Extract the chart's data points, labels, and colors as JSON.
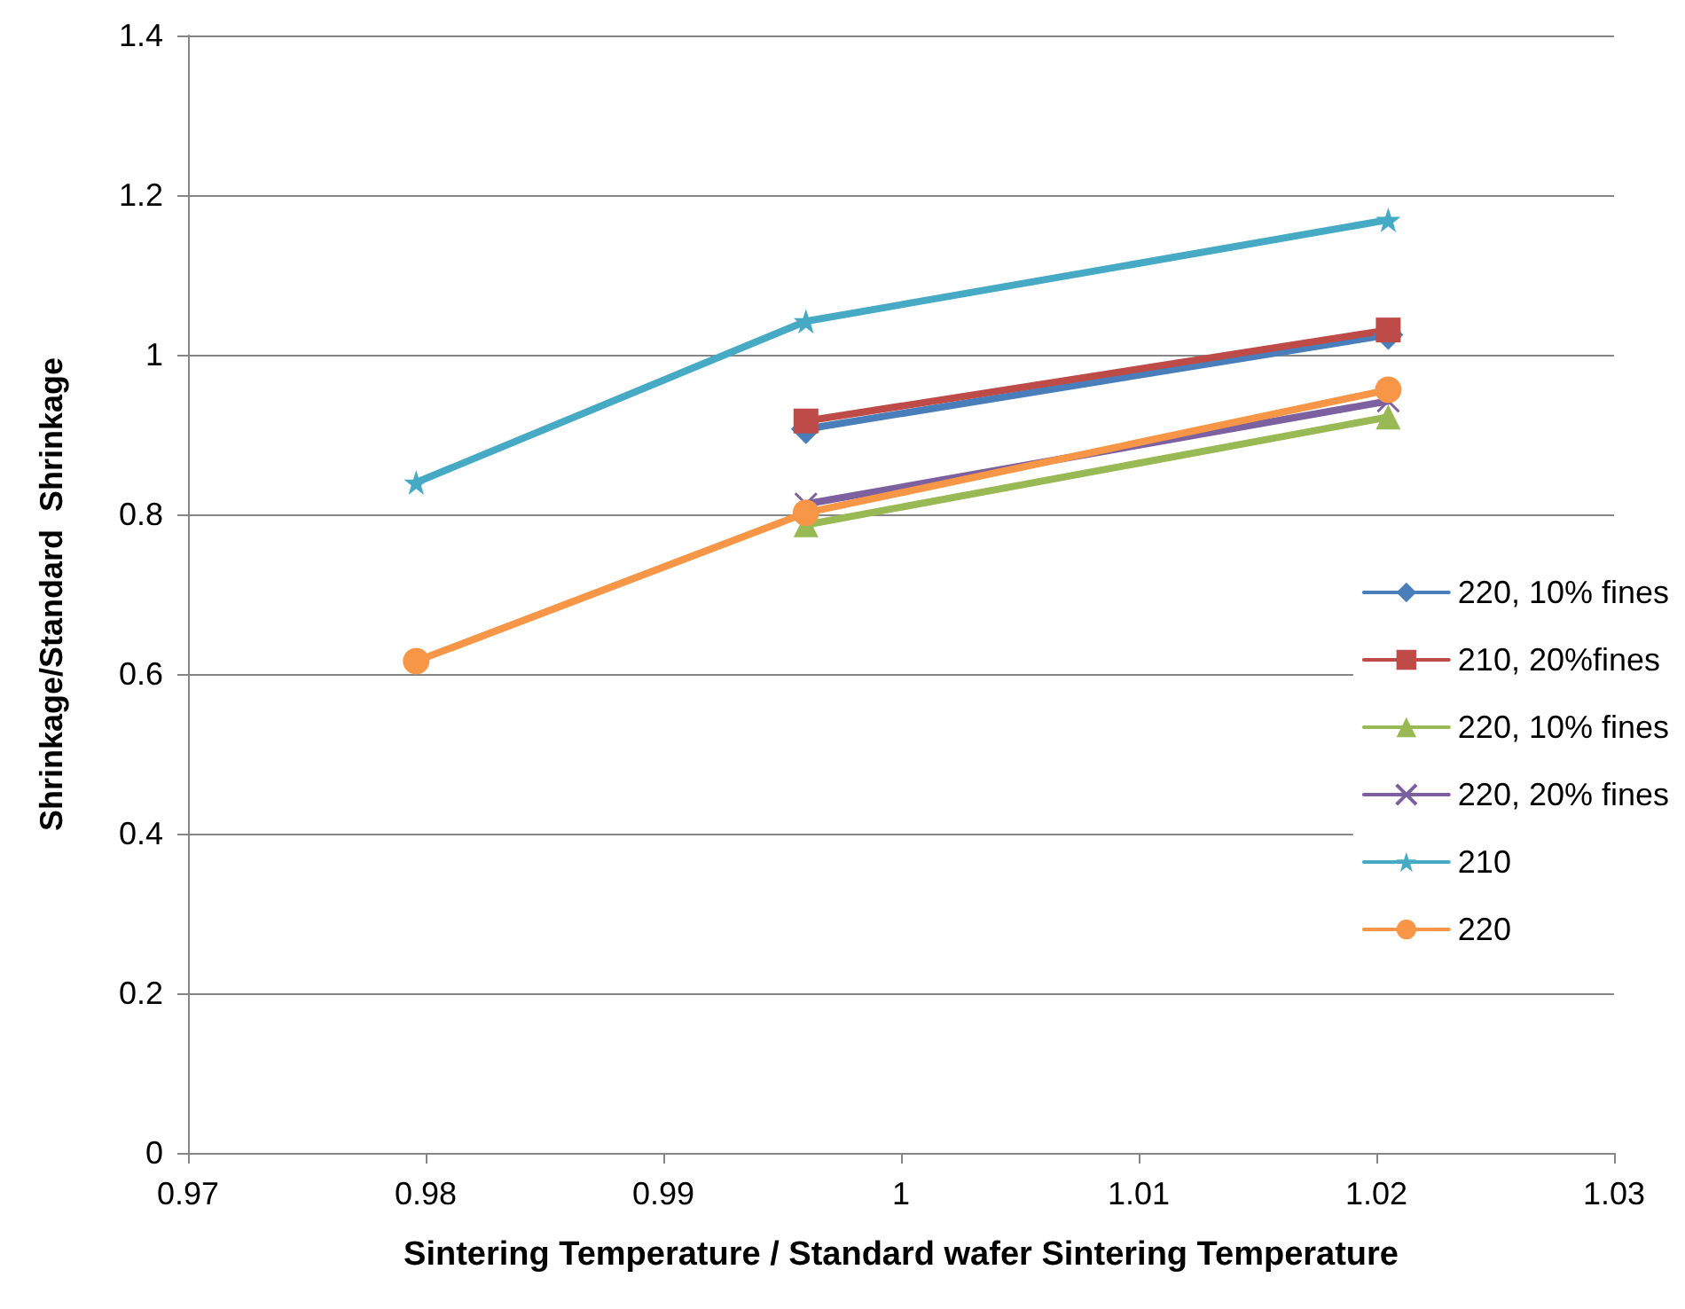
{
  "chart_data": {
    "type": "line",
    "xlabel": "Sintering Temperature / Standard wafer Sintering Temperature",
    "ylabel": "Shrinkage/Standard  Shrinkage",
    "xlim": [
      0.97,
      1.03
    ],
    "xticks": [
      0.97,
      0.98,
      0.99,
      1,
      1.01,
      1.02,
      1.03
    ],
    "ylim": [
      0,
      1.4
    ],
    "yticks": [
      0,
      0.2,
      0.4,
      0.6,
      0.8,
      1,
      1.2,
      1.4
    ],
    "grid": "y",
    "legend": "right",
    "line_style": "solid",
    "series": [
      {
        "name": "220, 10% fines",
        "color": "#4a7ebb",
        "marker": "diamond",
        "x": [
          0.996,
          1.0205
        ],
        "values": [
          0.907,
          1.025
        ]
      },
      {
        "name": "210, 20%fines",
        "color": "#be4b48",
        "marker": "square",
        "x": [
          0.996,
          1.0205
        ],
        "values": [
          0.917,
          1.031
        ]
      },
      {
        "name": "220, 10% fines",
        "color": "#98b954",
        "marker": "triangle",
        "x": [
          0.996,
          1.0205
        ],
        "values": [
          0.787,
          0.922
        ]
      },
      {
        "name": "220, 20% fines",
        "color": "#7d60a0",
        "marker": "cross",
        "x": [
          0.996,
          1.0205
        ],
        "values": [
          0.813,
          0.942
        ]
      },
      {
        "name": "210",
        "color": "#46aac5",
        "marker": "star",
        "x": [
          0.9796,
          0.996,
          1.0205
        ],
        "values": [
          0.84,
          1.042,
          1.169
        ]
      },
      {
        "name": "220",
        "color": "#f79646",
        "marker": "circle",
        "x": [
          0.9796,
          0.996,
          1.0205
        ],
        "values": [
          0.616,
          0.802,
          0.956
        ]
      }
    ]
  }
}
